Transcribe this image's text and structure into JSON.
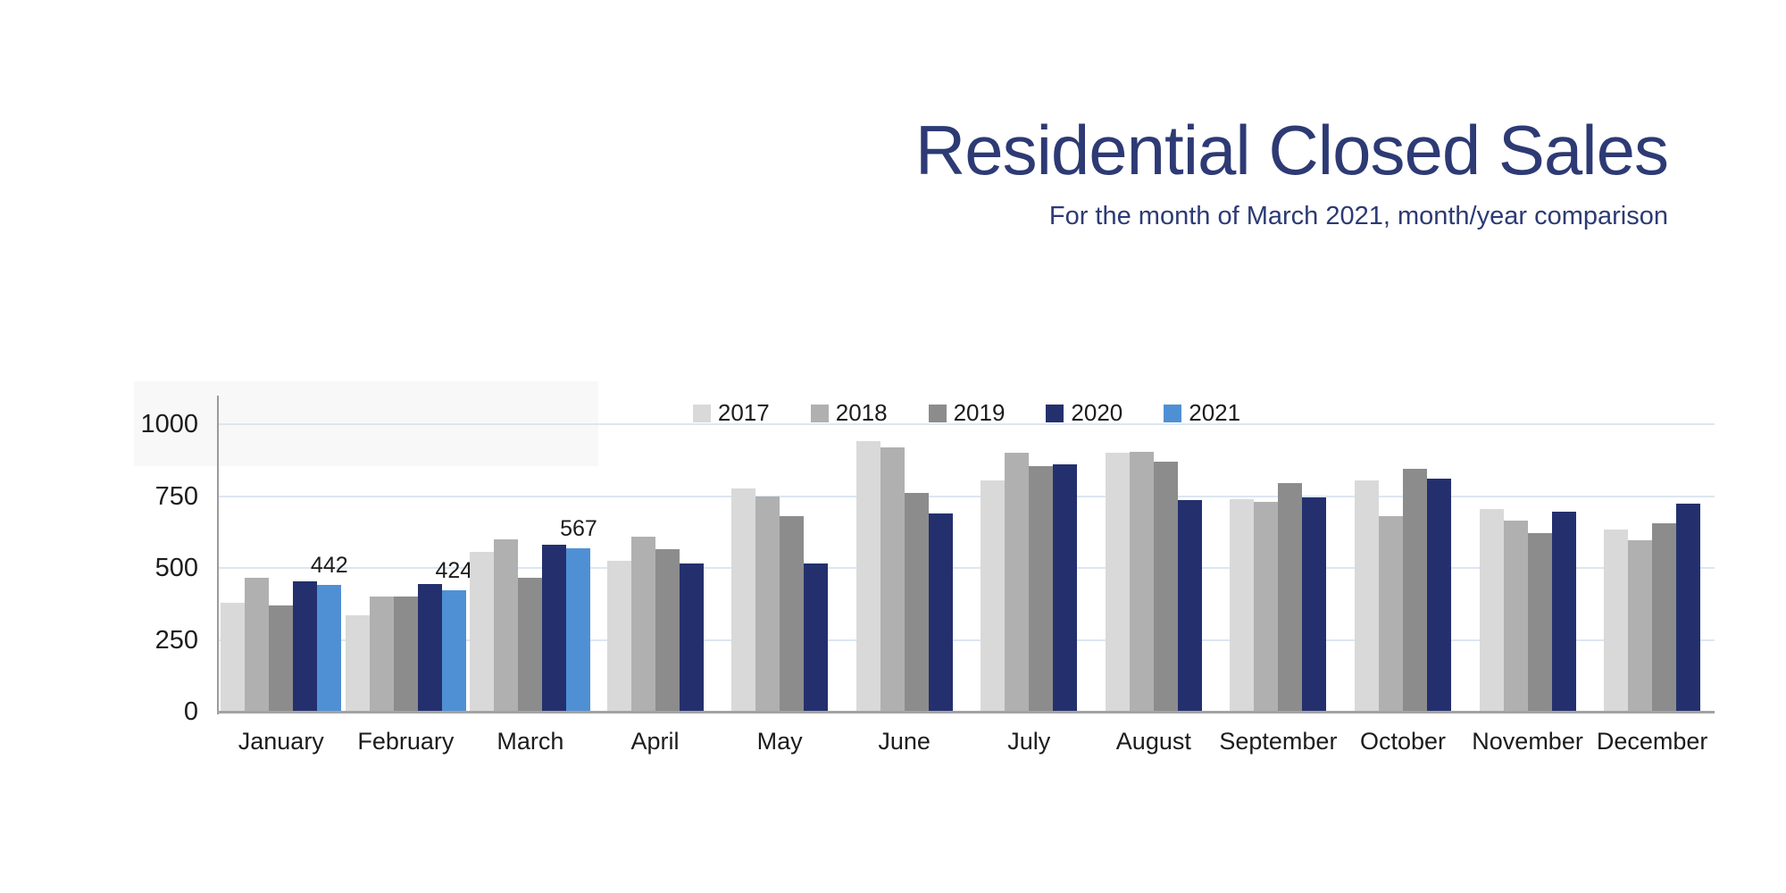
{
  "header": {
    "title": "Residential Closed Sales",
    "subtitle": "For the month of March 2021, month/year comparison",
    "title_color": "#2d3a74"
  },
  "chart_data": {
    "type": "bar",
    "title": "Residential Closed Sales",
    "subtitle": "For the month of March 2021, month/year comparison",
    "categories": [
      "January",
      "February",
      "March",
      "April",
      "May",
      "June",
      "July",
      "August",
      "September",
      "October",
      "November",
      "December"
    ],
    "series": [
      {
        "name": "2017",
        "color": "#d9d9d9",
        "values": [
          380,
          335,
          555,
          525,
          775,
          940,
          805,
          900,
          740,
          805,
          705,
          635
        ]
      },
      {
        "name": "2018",
        "color": "#b0b0b0",
        "values": [
          465,
          400,
          600,
          610,
          750,
          920,
          900,
          905,
          730,
          680,
          665,
          595
        ]
      },
      {
        "name": "2019",
        "color": "#8c8c8c",
        "values": [
          370,
          400,
          465,
          565,
          680,
          760,
          855,
          870,
          795,
          845,
          620,
          655
        ]
      },
      {
        "name": "2020",
        "color": "#24306e",
        "values": [
          455,
          445,
          580,
          515,
          515,
          690,
          860,
          735,
          745,
          810,
          695,
          725
        ]
      },
      {
        "name": "2021",
        "color": "#4f90d5",
        "values": [
          442,
          424,
          567,
          null,
          null,
          null,
          null,
          null,
          null,
          null,
          null,
          null
        ]
      }
    ],
    "annotations": [
      {
        "category": "January",
        "series": "2021",
        "text": "442"
      },
      {
        "category": "February",
        "series": "2021",
        "text": "424"
      },
      {
        "category": "March",
        "series": "2021",
        "text": "567"
      }
    ],
    "xlabel": "",
    "ylabel": "",
    "ylim": [
      0,
      1000
    ],
    "yticks": [
      0,
      250,
      500,
      750,
      1000
    ],
    "grid": true,
    "legend_position": "top-center",
    "colors": {
      "gridline": "#dce6f2",
      "axis": "#9b9b9b",
      "baseline": "#a3a3a3",
      "text": "#1c1c1c"
    }
  }
}
